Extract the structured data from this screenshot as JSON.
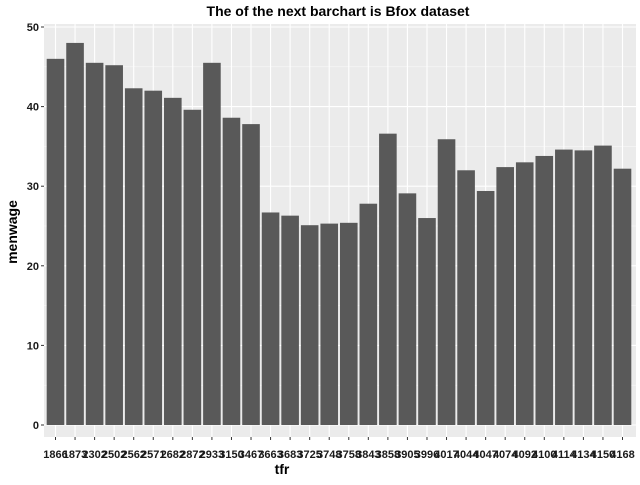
{
  "chart_data": {
    "type": "bar",
    "title": "The of the next barchart is Bfox dataset",
    "xlabel": "tfr",
    "ylabel": "menwage",
    "ylim": [
      0,
      50
    ],
    "yticks": [
      0,
      10,
      20,
      30,
      40,
      50
    ],
    "grid": true,
    "colors": {
      "bar": "#595959",
      "panel": "#ebebeb",
      "background": "#ffffff"
    },
    "categories": [
      "1866",
      "1873",
      "2302",
      "2502",
      "2562",
      "2571",
      "2682",
      "2872",
      "2933",
      "3150",
      "3467",
      "3663",
      "3683",
      "3725",
      "3748",
      "3758",
      "3843",
      "3858",
      "3905",
      "3996",
      "4017",
      "4044",
      "4047",
      "4074",
      "4092",
      "4100",
      "4114",
      "4134",
      "4150",
      "4168"
    ],
    "values": [
      46.0,
      48.0,
      45.5,
      45.2,
      42.3,
      42.0,
      41.1,
      39.6,
      45.5,
      38.6,
      37.8,
      26.7,
      26.3,
      25.1,
      25.3,
      25.4,
      27.8,
      36.6,
      29.1,
      26.0,
      35.9,
      32.0,
      29.4,
      32.4,
      33.0,
      33.8,
      34.6,
      34.5,
      35.1,
      32.2
    ]
  }
}
